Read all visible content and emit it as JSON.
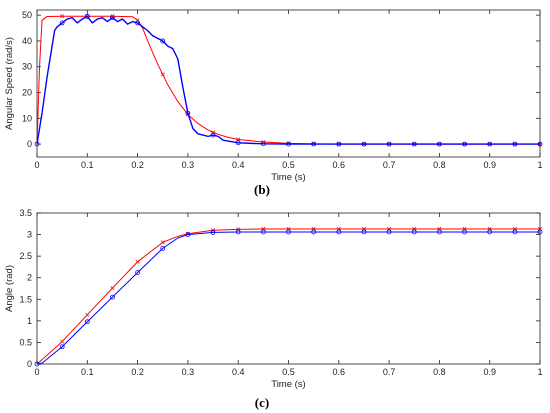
{
  "colors": {
    "series_a": "#ff0000",
    "series_b": "#0000ff",
    "axis": "#222222",
    "background": "#ffffff"
  },
  "chart_data": [
    {
      "type": "line",
      "caption": "(b)",
      "xlabel": "Time (s)",
      "ylabel": "Angular Speed (rad/s)",
      "xlim": [
        0,
        1
      ],
      "ylim": [
        -5,
        52
      ],
      "xticks": [
        0,
        0.1,
        0.2,
        0.3,
        0.4,
        0.5,
        0.6,
        0.7,
        0.8,
        0.9,
        1
      ],
      "xtick_labels": [
        "0",
        "0.1",
        "0.2",
        "0.3",
        "0.4",
        "0.5",
        "0.6",
        "0.7",
        "0.8",
        "0.9",
        "1"
      ],
      "yticks": [
        0,
        10,
        20,
        30,
        40,
        50
      ],
      "ytick_labels": [
        "0",
        "10",
        "20",
        "30",
        "40",
        "50"
      ],
      "grid": false,
      "series": [
        {
          "color": "#ff0000",
          "marker": "x",
          "x": [
            0,
            0.005,
            0.01,
            0.02,
            0.05,
            0.1,
            0.15,
            0.19,
            0.2,
            0.21,
            0.22,
            0.24,
            0.26,
            0.28,
            0.3,
            0.32,
            0.34,
            0.36,
            0.38,
            0.4,
            0.45,
            0.5,
            0.55,
            0.6,
            0.65,
            0.7,
            0.75,
            0.8,
            0.85,
            0.9,
            0.95,
            1.0
          ],
          "y": [
            0,
            30,
            48,
            49.5,
            49.6,
            49.6,
            49.6,
            49.4,
            48,
            45,
            40,
            31,
            23,
            16.5,
            11.5,
            8,
            5.5,
            3.8,
            2.6,
            1.8,
            0.8,
            0.3,
            0.1,
            0,
            0,
            0,
            0,
            0,
            0,
            0,
            0,
            0
          ],
          "marker_x": [
            0.05,
            0.1,
            0.15,
            0.2,
            0.25,
            0.3,
            0.35,
            0.4,
            0.45,
            0.5,
            0.55,
            0.6,
            0.65,
            0.7,
            0.75,
            0.8,
            0.85,
            0.9,
            0.95,
            1.0
          ],
          "marker_y": [
            49.6,
            49.6,
            49.6,
            48,
            27,
            11.5,
            4.5,
            1.8,
            0.8,
            0.3,
            0.1,
            0,
            0,
            0,
            0,
            0,
            0,
            0,
            0,
            0
          ]
        },
        {
          "color": "#0000ff",
          "marker": "o",
          "x": [
            0,
            0.01,
            0.02,
            0.03,
            0.035,
            0.04,
            0.05,
            0.06,
            0.07,
            0.08,
            0.09,
            0.1,
            0.11,
            0.12,
            0.13,
            0.14,
            0.15,
            0.16,
            0.17,
            0.18,
            0.19,
            0.2,
            0.21,
            0.22,
            0.23,
            0.24,
            0.25,
            0.26,
            0.27,
            0.28,
            0.29,
            0.3,
            0.31,
            0.32,
            0.33,
            0.34,
            0.35,
            0.36,
            0.37,
            0.4,
            0.45,
            0.5,
            0.6,
            0.7,
            0.8,
            0.9,
            1.0
          ],
          "y": [
            0,
            12,
            26,
            38,
            44,
            45.5,
            47,
            48.5,
            49,
            47,
            48.5,
            49.5,
            47,
            48.5,
            49,
            47.5,
            49,
            47.5,
            48.5,
            46.5,
            47.5,
            47,
            45.5,
            44,
            42,
            41,
            40,
            38,
            37,
            33,
            22,
            12,
            6,
            4,
            3.5,
            3,
            3.5,
            3,
            1.5,
            0.5,
            0.1,
            0,
            0,
            0,
            0,
            0,
            0
          ],
          "marker_x": [
            0,
            0.05,
            0.1,
            0.15,
            0.2,
            0.25,
            0.3,
            0.35,
            0.4,
            0.45,
            0.5,
            0.55,
            0.6,
            0.65,
            0.7,
            0.75,
            0.8,
            0.85,
            0.9,
            0.95,
            1.0
          ],
          "marker_y": [
            0,
            47,
            49.5,
            49,
            47,
            40,
            12,
            3.5,
            0.5,
            0.1,
            0,
            0,
            0,
            0,
            0,
            0,
            0,
            0,
            0,
            0,
            0
          ]
        }
      ]
    },
    {
      "type": "line",
      "caption": "(c)",
      "xlabel": "Time (s)",
      "ylabel": "Angle (rad)",
      "xlim": [
        0,
        1
      ],
      "ylim": [
        0,
        3.5
      ],
      "xticks": [
        0,
        0.1,
        0.2,
        0.3,
        0.4,
        0.5,
        0.6,
        0.7,
        0.8,
        0.9,
        1
      ],
      "xtick_labels": [
        "0",
        "0.1",
        "0.2",
        "0.3",
        "0.4",
        "0.5",
        "0.6",
        "0.7",
        "0.8",
        "0.9",
        "1"
      ],
      "yticks": [
        0,
        0.5,
        1,
        1.5,
        2,
        2.5,
        3,
        3.5
      ],
      "ytick_labels": [
        "0",
        "0.5",
        "1",
        "1.5",
        "2",
        "2.5",
        "3",
        "3.5"
      ],
      "grid": false,
      "series": [
        {
          "color": "#ff0000",
          "marker": "x",
          "x": [
            0,
            0.01,
            0.05,
            0.1,
            0.15,
            0.2,
            0.25,
            0.28,
            0.3,
            0.35,
            0.4,
            0.45,
            0.5,
            0.55,
            0.6,
            0.65,
            0.7,
            0.75,
            0.8,
            0.85,
            0.9,
            0.95,
            1.0
          ],
          "y": [
            0,
            0.1,
            0.52,
            1.14,
            1.76,
            2.37,
            2.82,
            2.96,
            3.02,
            3.1,
            3.12,
            3.13,
            3.13,
            3.13,
            3.13,
            3.13,
            3.13,
            3.13,
            3.13,
            3.13,
            3.13,
            3.13,
            3.13
          ],
          "marker_x": [
            0.05,
            0.1,
            0.15,
            0.2,
            0.25,
            0.3,
            0.35,
            0.4,
            0.45,
            0.5,
            0.55,
            0.6,
            0.65,
            0.7,
            0.75,
            0.8,
            0.85,
            0.9,
            0.95,
            1.0
          ],
          "marker_y": [
            0.52,
            1.14,
            1.76,
            2.37,
            2.82,
            3.02,
            3.1,
            3.12,
            3.13,
            3.13,
            3.13,
            3.13,
            3.13,
            3.13,
            3.13,
            3.13,
            3.13,
            3.13,
            3.13,
            3.13
          ]
        },
        {
          "color": "#0000ff",
          "marker": "o",
          "x": [
            0,
            0.01,
            0.05,
            0.1,
            0.15,
            0.2,
            0.25,
            0.28,
            0.3,
            0.35,
            0.4,
            0.45,
            0.5,
            0.55,
            0.6,
            0.65,
            0.7,
            0.75,
            0.8,
            0.85,
            0.9,
            0.95,
            1.0
          ],
          "y": [
            0,
            0.02,
            0.4,
            0.98,
            1.55,
            2.12,
            2.68,
            2.92,
            3.0,
            3.05,
            3.06,
            3.06,
            3.06,
            3.06,
            3.06,
            3.06,
            3.06,
            3.06,
            3.06,
            3.06,
            3.06,
            3.06,
            3.06
          ],
          "marker_x": [
            0,
            0.05,
            0.1,
            0.15,
            0.2,
            0.25,
            0.3,
            0.35,
            0.4,
            0.45,
            0.5,
            0.55,
            0.6,
            0.65,
            0.7,
            0.75,
            0.8,
            0.85,
            0.9,
            0.95,
            1.0
          ],
          "marker_y": [
            0,
            0.4,
            0.98,
            1.55,
            2.12,
            2.68,
            3.0,
            3.05,
            3.06,
            3.06,
            3.06,
            3.06,
            3.06,
            3.06,
            3.06,
            3.06,
            3.06,
            3.06,
            3.06,
            3.06,
            3.06
          ]
        }
      ]
    }
  ]
}
